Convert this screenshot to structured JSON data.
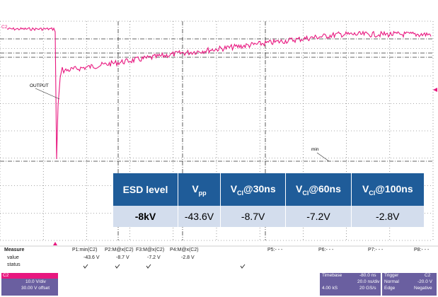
{
  "labels": {
    "channel": "C2",
    "output": "OUTPUT",
    "min": "min"
  },
  "table": {
    "headers": [
      {
        "main": "ESD level",
        "sub": "",
        "rest": ""
      },
      {
        "main": "V",
        "sub": "pp",
        "rest": ""
      },
      {
        "main": "V",
        "sub": "CI",
        "rest": "@30ns"
      },
      {
        "main": "V",
        "sub": "CI",
        "rest": "@60ns"
      },
      {
        "main": "V",
        "sub": "CI",
        "rest": "@100ns"
      }
    ],
    "rows": [
      [
        "-8kV",
        "-43.6V",
        "-8.7V",
        "-7.2V",
        "-2.8V"
      ]
    ]
  },
  "measure": {
    "title": "Measure",
    "row_labels": [
      "value",
      "status"
    ],
    "params": [
      {
        "name": "P1:min(C2)",
        "value": "-43.6 V"
      },
      {
        "name": "P2:M@x(C2)",
        "value": "-8.7 V"
      },
      {
        "name": "F3:M@x(C2)",
        "value": "-7.2 V"
      },
      {
        "name": "P4:M@x(C2)",
        "value": "-2.8 V"
      },
      {
        "name": "P5:- - -",
        "value": ""
      },
      {
        "name": "P6:- - -",
        "value": ""
      },
      {
        "name": "P7:- - -",
        "value": ""
      },
      {
        "name": "P8:- - -",
        "value": ""
      }
    ]
  },
  "channel_box": {
    "name": "C2",
    "scale": "10.0 V/div",
    "offset": "30.00 V offset"
  },
  "timebase": {
    "title": "Timebase",
    "delay": "-80.0 ns",
    "scale": "20.0 ns/div",
    "samples": "4.00 kS",
    "rate": "20 GS/s"
  },
  "trigger": {
    "title": "Trigger",
    "source": "C2",
    "mode": "Normal",
    "level": "-20.0 V",
    "type": "Edge",
    "slope": "Negative"
  }
}
